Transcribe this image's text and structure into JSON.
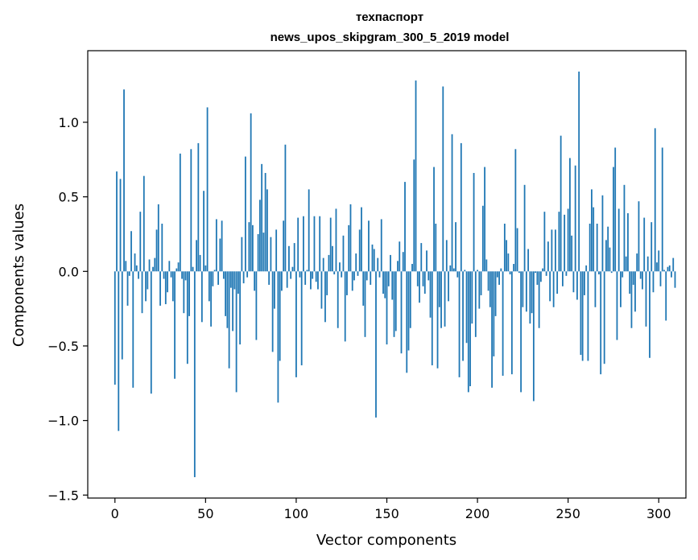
{
  "chart_data": {
    "type": "bar",
    "title": "техпаспорт",
    "subtitle": "news_upos_skipgram_300_5_2019 model",
    "xlabel": "Vector components",
    "ylabel": "Components values",
    "xlim": [
      -15,
      315
    ],
    "ylim": [
      -1.52,
      1.48
    ],
    "xticks": [
      0,
      50,
      100,
      150,
      200,
      250,
      300
    ],
    "yticks": [
      -1.5,
      -1.0,
      -0.5,
      0.0,
      0.5,
      1.0
    ],
    "ytick_labels": [
      "−1.5",
      "−1.0",
      "−0.5",
      "0.0",
      "0.5",
      "1.0"
    ],
    "grid": false,
    "bar_color": "#1f77b4",
    "values": [
      -0.76,
      0.67,
      -1.07,
      0.62,
      -0.59,
      1.22,
      0.07,
      -0.23,
      -0.03,
      0.27,
      -0.78,
      0.12,
      0.04,
      -0.05,
      0.4,
      -0.28,
      0.64,
      -0.2,
      -0.12,
      0.08,
      -0.82,
      0.03,
      0.09,
      0.28,
      0.45,
      -0.23,
      0.32,
      -0.05,
      -0.22,
      -0.14,
      0.07,
      -0.04,
      -0.2,
      -0.72,
      0.02,
      0.06,
      0.79,
      -0.05,
      -0.28,
      -0.06,
      -0.62,
      -0.3,
      0.82,
      0.03,
      -1.38,
      0.21,
      0.86,
      0.11,
      -0.34,
      0.54,
      0.04,
      1.1,
      -0.2,
      -0.37,
      -0.1,
      0.01,
      0.35,
      -0.09,
      0.22,
      0.34,
      -0.05,
      -0.3,
      -0.38,
      -0.65,
      -0.11,
      -0.4,
      -0.12,
      -0.81,
      -0.15,
      -0.49,
      0.23,
      -0.08,
      0.77,
      -0.04,
      0.33,
      1.06,
      0.31,
      -0.13,
      -0.46,
      0.25,
      0.48,
      0.72,
      0.26,
      0.66,
      0.55,
      -0.09,
      0.23,
      -0.54,
      -0.25,
      0.28,
      -0.88,
      -0.6,
      -0.13,
      0.34,
      0.85,
      -0.11,
      0.17,
      -0.05,
      0.03,
      0.19,
      -0.71,
      0.36,
      -0.04,
      -0.63,
      0.37,
      -0.09,
      0.01,
      0.55,
      -0.12,
      -0.05,
      0.37,
      -0.07,
      -0.12,
      0.37,
      -0.25,
      0.09,
      -0.34,
      -0.16,
      0.11,
      0.36,
      0.17,
      -0.02,
      0.42,
      -0.38,
      0.06,
      -0.04,
      0.24,
      -0.47,
      -0.16,
      0.31,
      0.45,
      -0.13,
      -0.06,
      0.12,
      -0.03,
      0.28,
      0.43,
      -0.23,
      -0.44,
      -0.06,
      0.34,
      -0.09,
      0.18,
      0.15,
      -0.98,
      0.09,
      -0.04,
      0.35,
      -0.15,
      -0.18,
      -0.49,
      -0.1,
      0.11,
      -0.19,
      -0.44,
      -0.4,
      0.07,
      0.2,
      -0.55,
      0.13,
      0.6,
      -0.68,
      -0.53,
      -0.38,
      0.05,
      0.75,
      1.28,
      -0.1,
      -0.21,
      0.19,
      -0.1,
      -0.15,
      0.14,
      -0.06,
      -0.31,
      -0.63,
      0.7,
      0.32,
      -0.65,
      -0.24,
      -0.38,
      1.24,
      -0.37,
      0.21,
      -0.2,
      0.04,
      0.92,
      0.02,
      0.33,
      -0.04,
      -0.71,
      0.86,
      -0.6,
      0.01,
      -0.48,
      -0.81,
      -0.77,
      -0.35,
      0.66,
      -0.44,
      0.01,
      -0.25,
      -0.16,
      0.44,
      0.7,
      0.08,
      -0.13,
      -0.24,
      -0.78,
      -0.57,
      -0.3,
      -0.04,
      -0.09,
      0.02,
      -0.7,
      0.32,
      0.21,
      0.12,
      -0.02,
      -0.69,
      0.05,
      0.82,
      0.29,
      -0.01,
      -0.81,
      -0.24,
      0.58,
      -0.27,
      0.15,
      -0.35,
      -0.28,
      -0.87,
      -0.01,
      -0.09,
      -0.38,
      -0.07,
      0.02,
      0.4,
      -0.03,
      0.2,
      -0.2,
      0.28,
      -0.24,
      0.28,
      -0.15,
      0.4,
      0.91,
      -0.1,
      0.38,
      -0.03,
      0.42,
      0.76,
      0.24,
      -0.14,
      0.71,
      -0.19,
      1.34,
      -0.56,
      -0.6,
      -0.16,
      0.04,
      -0.6,
      0.32,
      0.55,
      0.43,
      -0.24,
      0.32,
      -0.02,
      -0.69,
      0.51,
      -0.62,
      0.21,
      0.3,
      0.16,
      -0.01,
      0.7,
      0.83,
      -0.46,
      0.42,
      -0.24,
      -0.04,
      0.58,
      0.1,
      0.39,
      -0.15,
      -0.38,
      -0.09,
      -0.27,
      0.12,
      0.47,
      -0.05,
      -0.12,
      0.36,
      -0.37,
      0.1,
      -0.58,
      0.33,
      -0.14,
      0.96,
      0.06,
      0.14,
      -0.1,
      0.83,
      0.01,
      -0.33,
      0.03,
      0.04,
      -0.04,
      0.09,
      -0.11
    ]
  }
}
